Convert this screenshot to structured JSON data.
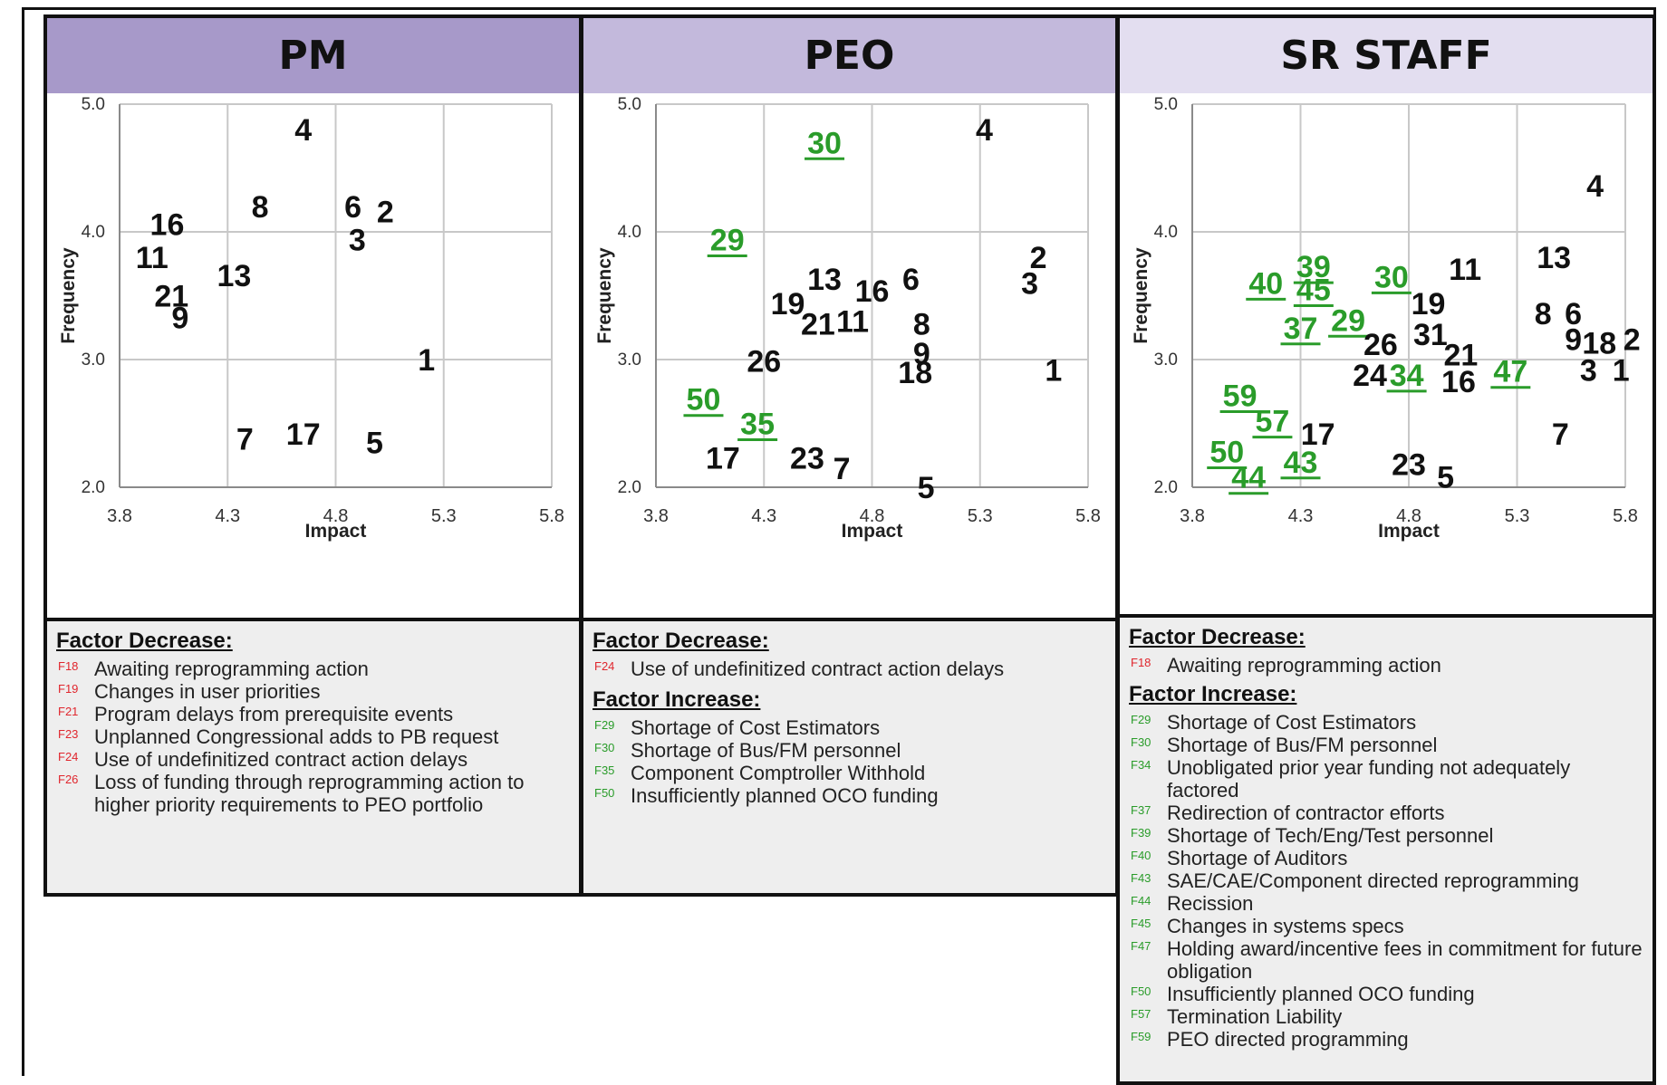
{
  "colors": {
    "decrease": "#e0262d",
    "increase": "#2a9c2a",
    "point_default": "#111111",
    "point_highlight": "#2a9c2a"
  },
  "chart_data": [
    {
      "type": "scatter",
      "title": "PM",
      "xlabel": "Impact",
      "ylabel": "Frequency",
      "xlim": [
        3.8,
        5.8
      ],
      "ylim": [
        2.0,
        5.0
      ],
      "xticks": [
        "3.8",
        "4.3",
        "4.8",
        "5.3",
        "5.8"
      ],
      "yticks": [
        "5.0",
        "4.0",
        "3.0",
        "2.0"
      ],
      "grid": true,
      "points": [
        {
          "label": "4",
          "x": 4.65,
          "y": 4.8
        },
        {
          "label": "16",
          "x": 4.02,
          "y": 4.06
        },
        {
          "label": "8",
          "x": 4.45,
          "y": 4.2
        },
        {
          "label": "6",
          "x": 4.88,
          "y": 4.2
        },
        {
          "label": "2",
          "x": 5.03,
          "y": 4.16
        },
        {
          "label": "11",
          "x": 3.95,
          "y": 3.8
        },
        {
          "label": "3",
          "x": 4.9,
          "y": 3.94
        },
        {
          "label": "13",
          "x": 4.33,
          "y": 3.66
        },
        {
          "label": "21",
          "x": 4.04,
          "y": 3.5
        },
        {
          "label": "9",
          "x": 4.08,
          "y": 3.33
        },
        {
          "label": "1",
          "x": 5.22,
          "y": 3.0
        },
        {
          "label": "7",
          "x": 4.38,
          "y": 2.38
        },
        {
          "label": "17",
          "x": 4.65,
          "y": 2.42
        },
        {
          "label": "5",
          "x": 4.98,
          "y": 2.35
        }
      ]
    },
    {
      "type": "scatter",
      "title": "PEO",
      "xlabel": "Impact",
      "ylabel": "Frequency",
      "xlim": [
        3.8,
        5.8
      ],
      "ylim": [
        2.0,
        5.0
      ],
      "xticks": [
        "3.8",
        "4.3",
        "4.8",
        "5.3",
        "5.8"
      ],
      "yticks": [
        "5.0",
        "4.0",
        "3.0",
        "2.0"
      ],
      "grid": true,
      "points": [
        {
          "label": "30",
          "x": 4.58,
          "y": 4.7,
          "highlight": true
        },
        {
          "label": "4",
          "x": 5.32,
          "y": 4.8
        },
        {
          "label": "29",
          "x": 4.13,
          "y": 3.94,
          "highlight": true
        },
        {
          "label": "2",
          "x": 5.57,
          "y": 3.8
        },
        {
          "label": "13",
          "x": 4.58,
          "y": 3.63
        },
        {
          "label": "16",
          "x": 4.8,
          "y": 3.54
        },
        {
          "label": "6",
          "x": 4.98,
          "y": 3.63
        },
        {
          "label": "3",
          "x": 5.53,
          "y": 3.6
        },
        {
          "label": "19",
          "x": 4.41,
          "y": 3.44
        },
        {
          "label": "21",
          "x": 4.55,
          "y": 3.28
        },
        {
          "label": "11",
          "x": 4.71,
          "y": 3.3
        },
        {
          "label": "8",
          "x": 5.03,
          "y": 3.28
        },
        {
          "label": "9",
          "x": 5.03,
          "y": 3.05
        },
        {
          "label": "26",
          "x": 4.3,
          "y": 2.99
        },
        {
          "label": "18",
          "x": 5.0,
          "y": 2.9
        },
        {
          "label": "1",
          "x": 5.64,
          "y": 2.92
        },
        {
          "label": "50",
          "x": 4.02,
          "y": 2.69,
          "highlight": true
        },
        {
          "label": "35",
          "x": 4.27,
          "y": 2.5,
          "highlight": true
        },
        {
          "label": "17",
          "x": 4.11,
          "y": 2.23
        },
        {
          "label": "23",
          "x": 4.5,
          "y": 2.23
        },
        {
          "label": "7",
          "x": 4.66,
          "y": 2.15
        },
        {
          "label": "5",
          "x": 5.05,
          "y": 2.0
        }
      ]
    },
    {
      "type": "scatter",
      "title": "SR STAFF",
      "xlabel": "Impact",
      "ylabel": "Frequency",
      "xlim": [
        3.8,
        5.8
      ],
      "ylim": [
        2.0,
        5.0
      ],
      "xticks": [
        "3.8",
        "4.3",
        "4.8",
        "5.3",
        "5.8"
      ],
      "yticks": [
        "5.0",
        "4.0",
        "3.0",
        "2.0"
      ],
      "grid": true,
      "points": [
        {
          "label": "4",
          "x": 5.66,
          "y": 4.36
        },
        {
          "label": "40",
          "x": 4.14,
          "y": 3.6,
          "highlight": true
        },
        {
          "label": "39",
          "x": 4.36,
          "y": 3.73,
          "highlight": true
        },
        {
          "label": "45",
          "x": 4.36,
          "y": 3.55,
          "highlight": true
        },
        {
          "label": "30",
          "x": 4.72,
          "y": 3.65,
          "highlight": true
        },
        {
          "label": "11",
          "x": 5.06,
          "y": 3.71
        },
        {
          "label": "13",
          "x": 5.47,
          "y": 3.8
        },
        {
          "label": "19",
          "x": 4.89,
          "y": 3.44
        },
        {
          "label": "37",
          "x": 4.3,
          "y": 3.25,
          "highlight": true
        },
        {
          "label": "29",
          "x": 4.52,
          "y": 3.31,
          "highlight": true
        },
        {
          "label": "8",
          "x": 5.42,
          "y": 3.36
        },
        {
          "label": "6",
          "x": 5.56,
          "y": 3.36
        },
        {
          "label": "26",
          "x": 4.67,
          "y": 3.12
        },
        {
          "label": "31",
          "x": 4.9,
          "y": 3.2
        },
        {
          "label": "9",
          "x": 5.56,
          "y": 3.16
        },
        {
          "label": "18",
          "x": 5.68,
          "y": 3.13
        },
        {
          "label": "2",
          "x": 5.83,
          "y": 3.16
        },
        {
          "label": "21",
          "x": 5.04,
          "y": 3.04
        },
        {
          "label": "24",
          "x": 4.62,
          "y": 2.88
        },
        {
          "label": "34",
          "x": 4.79,
          "y": 2.88,
          "highlight": true
        },
        {
          "label": "16",
          "x": 5.03,
          "y": 2.83
        },
        {
          "label": "47",
          "x": 5.27,
          "y": 2.91,
          "highlight": true
        },
        {
          "label": "3",
          "x": 5.63,
          "y": 2.92
        },
        {
          "label": "1",
          "x": 5.78,
          "y": 2.92
        },
        {
          "label": "59",
          "x": 4.02,
          "y": 2.72,
          "highlight": true
        },
        {
          "label": "57",
          "x": 4.17,
          "y": 2.52,
          "highlight": true
        },
        {
          "label": "17",
          "x": 4.38,
          "y": 2.42
        },
        {
          "label": "7",
          "x": 5.5,
          "y": 2.42
        },
        {
          "label": "50",
          "x": 3.96,
          "y": 2.28,
          "highlight": true
        },
        {
          "label": "43",
          "x": 4.3,
          "y": 2.2,
          "highlight": true
        },
        {
          "label": "23",
          "x": 4.8,
          "y": 2.18
        },
        {
          "label": "5",
          "x": 4.97,
          "y": 2.08
        },
        {
          "label": "44",
          "x": 4.06,
          "y": 2.08,
          "highlight": true
        }
      ]
    }
  ],
  "legends": {
    "pm": {
      "decrease_heading": "Factor Decrease:",
      "decrease": [
        {
          "id": "F18",
          "text": "Awaiting reprogramming action"
        },
        {
          "id": "F19",
          "text": "Changes in user priorities"
        },
        {
          "id": "F21",
          "text": "Program delays from prerequisite events"
        },
        {
          "id": "F23",
          "text": "Unplanned Congressional adds to PB request"
        },
        {
          "id": "F24",
          "text": "Use of undefinitized contract action delays"
        },
        {
          "id": "F26",
          "text": "Loss of funding through reprogramming action to higher priority requirements to PEO portfolio"
        }
      ]
    },
    "peo": {
      "decrease_heading": "Factor Decrease:",
      "decrease": [
        {
          "id": "F24",
          "text": "Use of undefinitized contract action delays"
        }
      ],
      "increase_heading": "Factor Increase:",
      "increase": [
        {
          "id": "F29",
          "text": "Shortage of Cost Estimators"
        },
        {
          "id": "F30",
          "text": "Shortage of Bus/FM personnel"
        },
        {
          "id": "F35",
          "text": "Component Comptroller Withhold"
        },
        {
          "id": "F50",
          "text": "Insufficiently planned OCO funding"
        }
      ]
    },
    "sr": {
      "decrease_heading": "Factor Decrease:",
      "decrease": [
        {
          "id": "F18",
          "text": "Awaiting reprogramming action"
        }
      ],
      "increase_heading": "Factor Increase:",
      "increase": [
        {
          "id": "F29",
          "text": "Shortage of Cost Estimators"
        },
        {
          "id": "F30",
          "text": "Shortage of Bus/FM personnel"
        },
        {
          "id": "F34",
          "text": "Unobligated prior year funding not adequately factored"
        },
        {
          "id": "F37",
          "text": "Redirection of contractor efforts"
        },
        {
          "id": "F39",
          "text": "Shortage of Tech/Eng/Test personnel"
        },
        {
          "id": "F40",
          "text": "Shortage of Auditors"
        },
        {
          "id": "F43",
          "text": "SAE/CAE/Component directed reprogramming"
        },
        {
          "id": "F44",
          "text": "Recission"
        },
        {
          "id": "F45",
          "text": "Changes in systems specs"
        },
        {
          "id": "F47",
          "text": "Holding award/incentive fees in commitment for future obligation"
        },
        {
          "id": "F50",
          "text": "Insufficiently planned OCO funding"
        },
        {
          "id": "F57",
          "text": "Termination Liability"
        },
        {
          "id": "F59",
          "text": "PEO directed programming"
        }
      ]
    }
  }
}
